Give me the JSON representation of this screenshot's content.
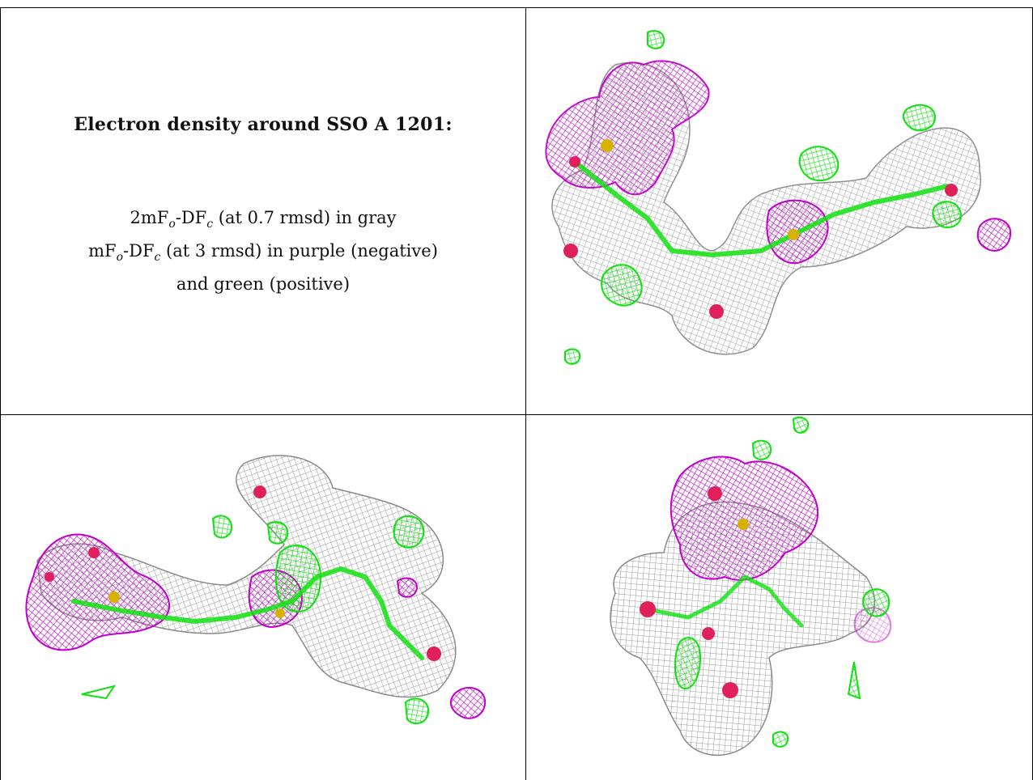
{
  "caption": {
    "title": "Electron density around SSO A 1201:",
    "legend_lines": [
      {
        "prefix": "2mF",
        "sub1": "o",
        "mid": "-DF",
        "sub2": "c",
        "suffix": " (at 0.7 rmsd) in gray"
      },
      {
        "prefix": "mF",
        "sub1": "o",
        "mid": "-DF",
        "sub2": "c",
        "suffix": " (at 3 rmsd) in purple (negative)"
      },
      {
        "text": "and green (positive)"
      }
    ]
  },
  "colors": {
    "gray_map": "#9a9a9a",
    "purple_map": "#c000c8",
    "green_map": "#10e010",
    "atom_red": "#e0205a",
    "atom_yellow": "#d8b000"
  },
  "panels": [
    {
      "view": "top-right",
      "icon": "density-map-view-1"
    },
    {
      "view": "bottom-left",
      "icon": "density-map-view-2"
    },
    {
      "view": "bottom-right",
      "icon": "density-map-view-3"
    }
  ]
}
